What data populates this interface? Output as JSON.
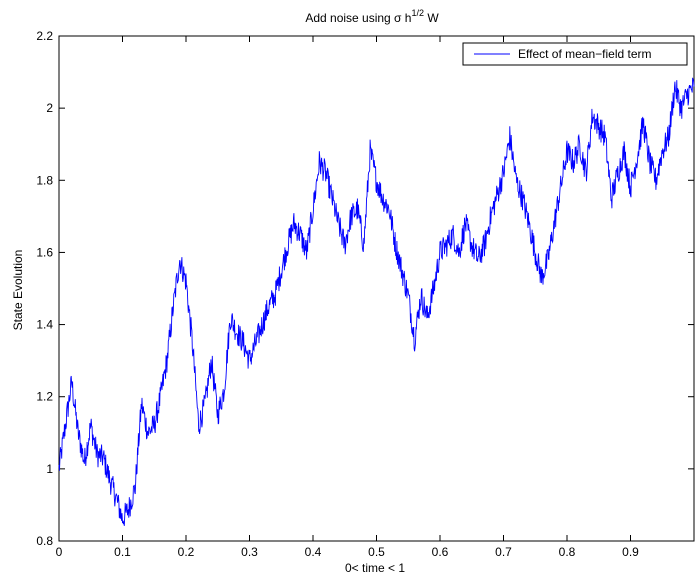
{
  "chart_data": {
    "type": "line",
    "title": {
      "main": "Add noise using σ h",
      "sup": "1/2",
      "tail": " W"
    },
    "xlabel": "0< time < 1",
    "ylabel": "State Evolution",
    "xlim": [
      0,
      1
    ],
    "ylim": [
      0.8,
      2.2
    ],
    "xticks": [
      0,
      0.1,
      0.2,
      0.3,
      0.4,
      0.5,
      0.6,
      0.7,
      0.8,
      0.9
    ],
    "xtick_labels": [
      "0",
      "0.1",
      "0.2",
      "0.3",
      "0.4",
      "0.5",
      "0.6",
      "0.7",
      "0.8",
      "0.9"
    ],
    "yticks": [
      0.8,
      1.0,
      1.2,
      1.4,
      1.6,
      1.8,
      2.0,
      2.2
    ],
    "ytick_labels": [
      "0.8",
      "1",
      "1.2",
      "1.4",
      "1.6",
      "1.8",
      "2",
      "2.2"
    ],
    "grid": false,
    "legend_position": "top-right",
    "line_color": "#0000ff",
    "series": [
      {
        "name": "Effect of mean−field term",
        "x": [
          0,
          0.01,
          0.02,
          0.03,
          0.04,
          0.05,
          0.06,
          0.07,
          0.08,
          0.09,
          0.1,
          0.11,
          0.12,
          0.13,
          0.14,
          0.15,
          0.16,
          0.17,
          0.18,
          0.19,
          0.2,
          0.21,
          0.22,
          0.23,
          0.24,
          0.25,
          0.26,
          0.27,
          0.28,
          0.29,
          0.3,
          0.31,
          0.32,
          0.33,
          0.34,
          0.35,
          0.36,
          0.37,
          0.38,
          0.39,
          0.4,
          0.41,
          0.42,
          0.43,
          0.44,
          0.45,
          0.46,
          0.47,
          0.48,
          0.49,
          0.5,
          0.51,
          0.52,
          0.53,
          0.54,
          0.55,
          0.56,
          0.57,
          0.58,
          0.59,
          0.6,
          0.61,
          0.62,
          0.63,
          0.64,
          0.65,
          0.66,
          0.67,
          0.68,
          0.69,
          0.7,
          0.71,
          0.72,
          0.73,
          0.74,
          0.75,
          0.76,
          0.77,
          0.78,
          0.79,
          0.8,
          0.81,
          0.82,
          0.83,
          0.84,
          0.85,
          0.86,
          0.87,
          0.88,
          0.89,
          0.9,
          0.91,
          0.92,
          0.93,
          0.94,
          0.95,
          0.96,
          0.97,
          0.98,
          0.99,
          1.0
        ],
        "y": [
          1.0,
          1.12,
          1.24,
          1.1,
          1.02,
          1.12,
          1.04,
          1.03,
          0.97,
          0.92,
          0.86,
          0.89,
          0.95,
          1.18,
          1.1,
          1.12,
          1.2,
          1.3,
          1.45,
          1.58,
          1.52,
          1.35,
          1.12,
          1.18,
          1.3,
          1.15,
          1.22,
          1.42,
          1.38,
          1.35,
          1.3,
          1.35,
          1.4,
          1.45,
          1.48,
          1.55,
          1.62,
          1.68,
          1.65,
          1.6,
          1.72,
          1.85,
          1.82,
          1.75,
          1.68,
          1.62,
          1.7,
          1.72,
          1.62,
          1.88,
          1.8,
          1.75,
          1.72,
          1.62,
          1.55,
          1.48,
          1.36,
          1.48,
          1.42,
          1.5,
          1.6,
          1.62,
          1.65,
          1.6,
          1.68,
          1.62,
          1.58,
          1.62,
          1.7,
          1.76,
          1.82,
          1.92,
          1.8,
          1.75,
          1.68,
          1.6,
          1.53,
          1.58,
          1.68,
          1.78,
          1.88,
          1.85,
          1.9,
          1.82,
          1.98,
          1.95,
          1.92,
          1.75,
          1.82,
          1.88,
          1.78,
          1.86,
          1.96,
          1.85,
          1.8,
          1.88,
          1.92,
          2.06,
          2.0,
          2.04,
          2.06
        ]
      }
    ]
  }
}
